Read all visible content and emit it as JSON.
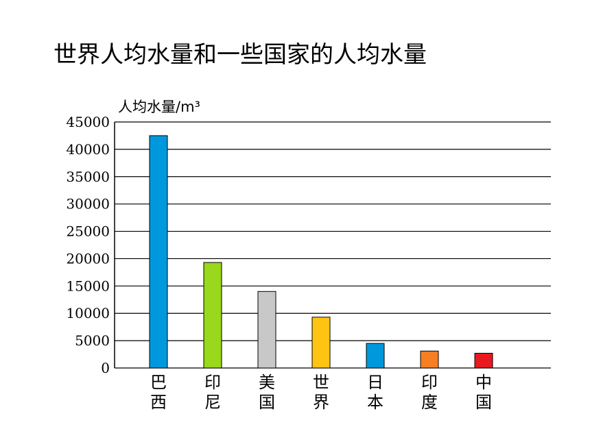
{
  "title": "世界人均水量和一些国家的人均水量",
  "chart_data": {
    "type": "bar",
    "title": "世界人均水量和一些国家的人均水量",
    "ylabel": "人均水量/m³",
    "xlabel": "",
    "categories": [
      "巴西",
      "印尼",
      "美国",
      "世界",
      "日本",
      "印度",
      "中国"
    ],
    "values": [
      42500,
      19300,
      14000,
      9300,
      4500,
      3100,
      2700
    ],
    "colors": [
      "#0098dc",
      "#99d81a",
      "#c8c8c8",
      "#ffc412",
      "#0098dc",
      "#f57f22",
      "#e8191f"
    ],
    "ylim": [
      0,
      45000
    ],
    "yticks": [
      0,
      5000,
      10000,
      15000,
      20000,
      25000,
      30000,
      35000,
      40000,
      45000
    ],
    "grid": true
  }
}
